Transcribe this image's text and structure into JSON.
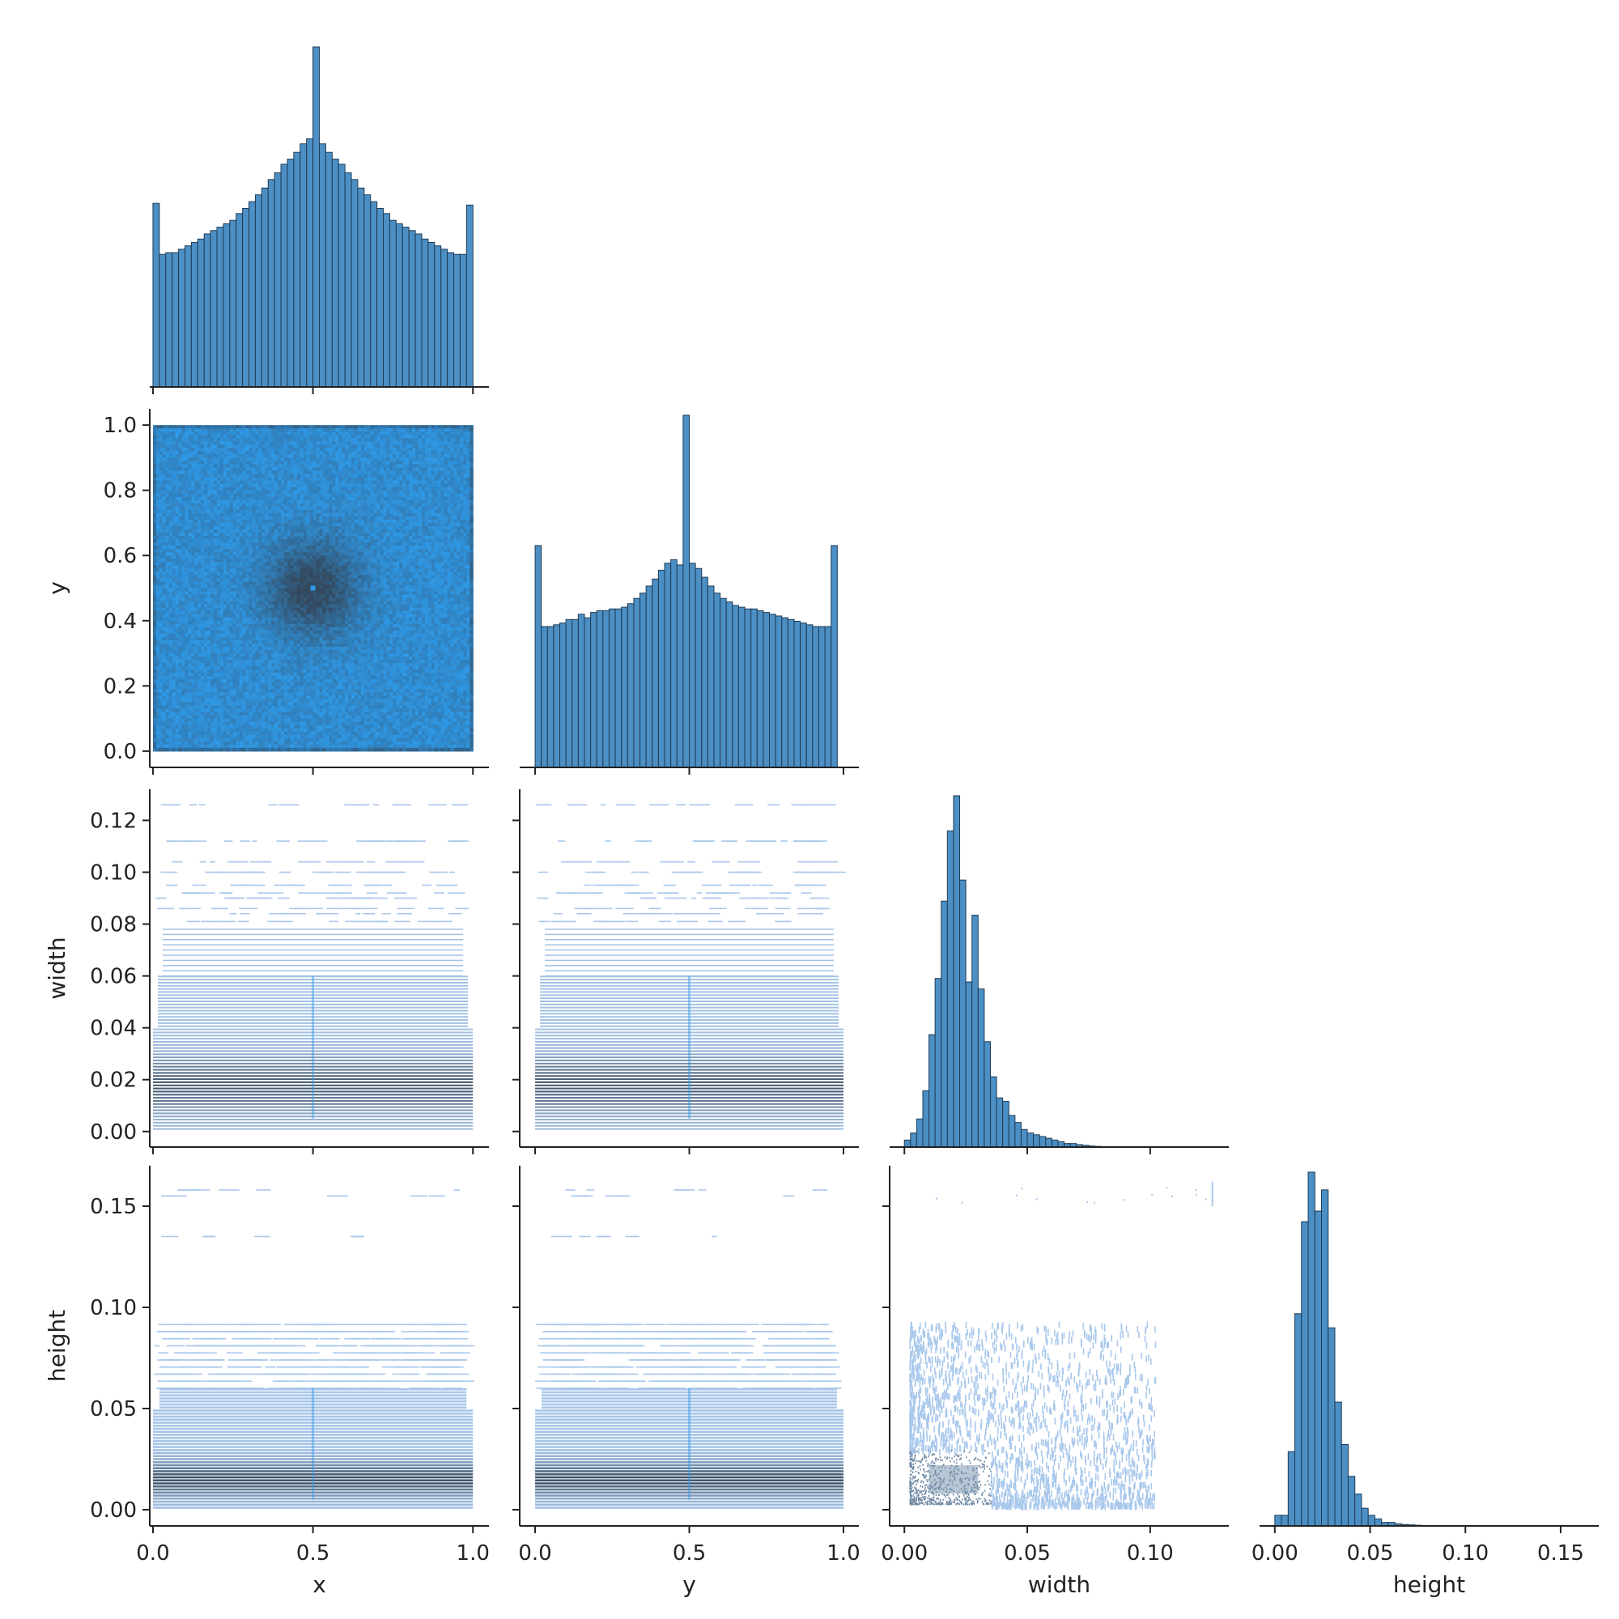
{
  "chart_data": {
    "type": "pairplot",
    "variables": [
      "x",
      "y",
      "width",
      "height"
    ],
    "corner": true,
    "colors": {
      "hist_fill": "#4c8fc4",
      "hist_edge": "#1f3b55",
      "heat_light": "#2f9ae8",
      "heat_dark": "#34495e",
      "heat_faint": "#a9c8ec",
      "axis": "#222222"
    },
    "axes": {
      "x": {
        "label": "x",
        "range": [
          -0.01,
          1.05
        ],
        "ticks": [
          0.0,
          0.5,
          1.0
        ],
        "tick_labels": [
          "0.0",
          "0.5",
          "1.0"
        ]
      },
      "y": {
        "label": "y",
        "range": [
          -0.05,
          1.05
        ],
        "ticks": [
          0.0,
          0.2,
          0.4,
          0.6,
          0.8,
          1.0
        ],
        "tick_labels": [
          "0.0",
          "0.2",
          "0.4",
          "0.6",
          "0.8",
          "1.0"
        ],
        "x_ticks": [
          0.0,
          0.5,
          1.0
        ],
        "x_tick_labels": [
          "0.0",
          "0.5",
          "1.0"
        ]
      },
      "width": {
        "label": "width",
        "range": [
          -0.006,
          0.132
        ],
        "ticks": [
          0.0,
          0.02,
          0.04,
          0.06,
          0.08,
          0.1,
          0.12
        ],
        "tick_labels": [
          "0.00",
          "0.02",
          "0.04",
          "0.06",
          "0.08",
          "0.10",
          "0.12"
        ],
        "x_ticks": [
          0.0,
          0.05,
          0.1
        ],
        "x_tick_labels": [
          "0.00",
          "0.05",
          "0.10"
        ]
      },
      "height": {
        "label": "height",
        "range": [
          -0.008,
          0.17
        ],
        "ticks": [
          0.0,
          0.05,
          0.1,
          0.15
        ],
        "tick_labels": [
          "0.00",
          "0.05",
          "0.10",
          "0.15"
        ],
        "x_ticks": [
          0.0,
          0.05,
          0.1,
          0.15
        ],
        "x_tick_labels": [
          "0.00",
          "0.05",
          "0.10",
          "0.15"
        ]
      }
    },
    "diagonal_histograms": {
      "x": {
        "bin_start": 0.0,
        "bin_width": 0.02,
        "counts": [
          54,
          39,
          39.5,
          39.5,
          40.5,
          41.5,
          42.5,
          43.5,
          45,
          46,
          47,
          48,
          49,
          51,
          52.5,
          54.5,
          56.5,
          58.5,
          61,
          63,
          65.5,
          67,
          69,
          71.5,
          73,
          100,
          71.5,
          69,
          67,
          65.5,
          63,
          61,
          58.5,
          56.5,
          54.5,
          52.5,
          51,
          49,
          48,
          47,
          46,
          45,
          43.5,
          42.5,
          41.5,
          40.5,
          39.5,
          39,
          39,
          53.5
        ]
      },
      "y": {
        "bin_start": 0.0,
        "bin_width": 0.02,
        "counts": [
          63,
          40,
          40,
          40.5,
          41,
          42,
          42,
          43.5,
          42.5,
          44,
          44.5,
          44.5,
          45,
          45,
          45.5,
          46.5,
          48,
          49.5,
          51.5,
          53.5,
          56,
          58,
          59,
          57.5,
          100,
          58,
          56.5,
          54,
          51.5,
          49.5,
          48,
          47,
          46,
          45.5,
          45,
          45,
          44.5,
          44,
          43.5,
          43,
          42.5,
          42,
          41.5,
          41,
          40.5,
          40,
          40,
          40,
          63
        ]
      },
      "width": {
        "bin_start": 0.0,
        "bin_width": 0.0025,
        "counts": [
          2,
          4,
          8,
          16,
          32,
          48,
          70,
          90,
          100,
          76,
          47,
          66,
          45,
          30,
          20,
          14,
          13,
          9,
          7,
          5,
          4,
          3.5,
          3,
          2.5,
          2,
          1.5,
          1,
          1,
          0.7,
          0.5,
          0.3,
          0.2,
          0.1
        ]
      },
      "height": {
        "bin_start": 0.0,
        "bin_width": 0.0035,
        "counts": [
          3,
          3,
          21,
          60,
          86,
          100,
          89,
          95,
          56,
          35,
          23,
          14,
          9,
          5,
          3,
          2,
          1,
          1,
          0.6,
          0.4,
          0.3,
          0.2,
          0.1
        ]
      }
    }
  }
}
